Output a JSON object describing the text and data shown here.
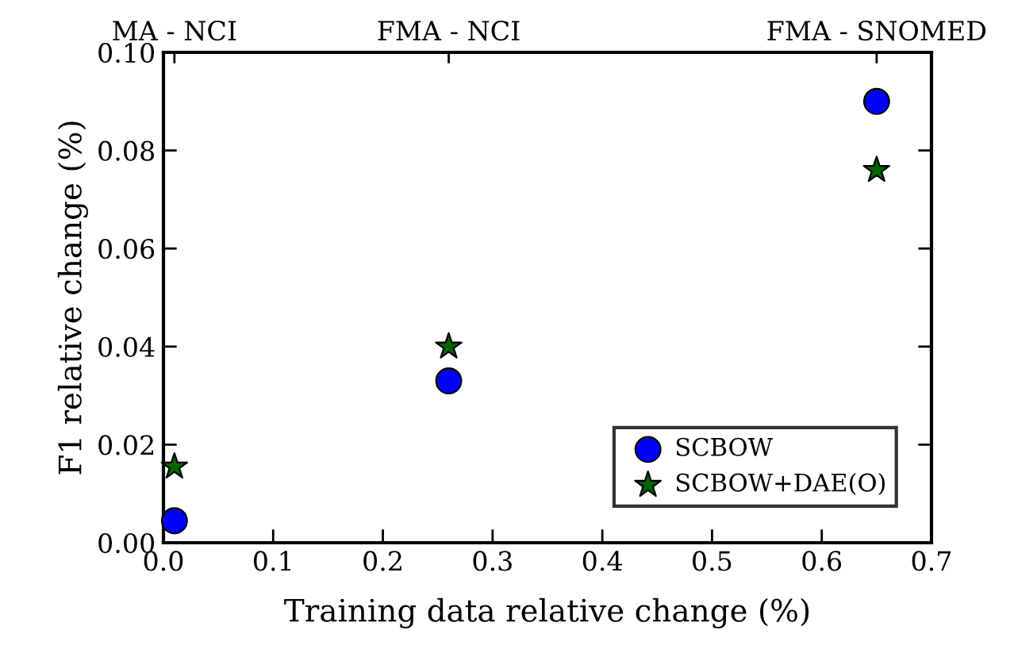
{
  "chart_data": {
    "type": "scatter",
    "xlabel": "Training data relative change (%)",
    "ylabel": "F1 relative change (%)",
    "x": [
      0.01,
      0.26,
      0.65
    ],
    "series": [
      {
        "name": "SCBOW",
        "color": "#0000ff",
        "marker": "circle",
        "values": [
          0.0045,
          0.033,
          0.09
        ]
      },
      {
        "name": "SCBOW+DAE(O)",
        "color": "#006400",
        "marker": "star",
        "values": [
          0.0155,
          0.04,
          0.076
        ]
      }
    ],
    "xlim": [
      0,
      0.7
    ],
    "xticks": [
      {
        "value": 0,
        "label": "0.0"
      },
      0.1,
      0.2,
      0.3,
      0.4,
      0.5,
      0.6,
      0.7
    ],
    "ylim": [
      0,
      0.1
    ],
    "yticks": [
      {
        "value": 0,
        "label": "0.00"
      },
      0.02,
      0.04,
      0.06,
      0.08,
      {
        "value": 0.1,
        "label": "0.10"
      }
    ],
    "annotations": [
      "MA - NCI",
      "FMA - NCI",
      "FMA - SNOMED"
    ],
    "legend": "bottom right",
    "grid": false
  }
}
